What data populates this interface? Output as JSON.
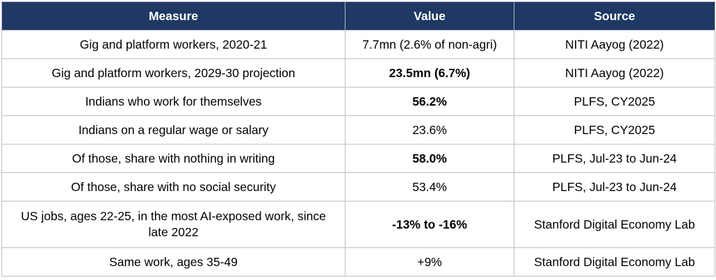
{
  "table": {
    "headers": [
      "Measure",
      "Value",
      "Source"
    ],
    "rows": [
      {
        "measure": "Gig and platform workers, 2020-21",
        "value": "7.7mn (2.6% of non-agri)",
        "value_bold": false,
        "source": "NITI Aayog (2022)"
      },
      {
        "measure": "Gig and platform workers, 2029-30 projection",
        "value": "23.5mn (6.7%)",
        "value_bold": true,
        "source": "NITI Aayog (2022)"
      },
      {
        "measure": "Indians who work for themselves",
        "value": "56.2%",
        "value_bold": true,
        "source": "PLFS, CY2025"
      },
      {
        "measure": "Indians on a regular wage or salary",
        "value": "23.6%",
        "value_bold": false,
        "source": "PLFS, CY2025"
      },
      {
        "measure": "Of those, share with nothing in writing",
        "value": "58.0%",
        "value_bold": true,
        "source": "PLFS, Jul-23 to Jun-24"
      },
      {
        "measure": "Of those, share with no social security",
        "value": "53.4%",
        "value_bold": false,
        "source": "PLFS, Jul-23 to Jun-24"
      },
      {
        "measure": "US jobs, ages 22-25, in the most AI-exposed work, since late 2022",
        "value": "-13% to -16%",
        "value_bold": true,
        "source": "Stanford Digital Economy Lab"
      },
      {
        "measure": "Same work, ages 35-49",
        "value": "+9%",
        "value_bold": false,
        "source": "Stanford Digital Economy Lab"
      }
    ]
  },
  "colors": {
    "header_bg": "#1f3864",
    "header_text": "#ffffff",
    "grid": "#bfbfbf"
  }
}
